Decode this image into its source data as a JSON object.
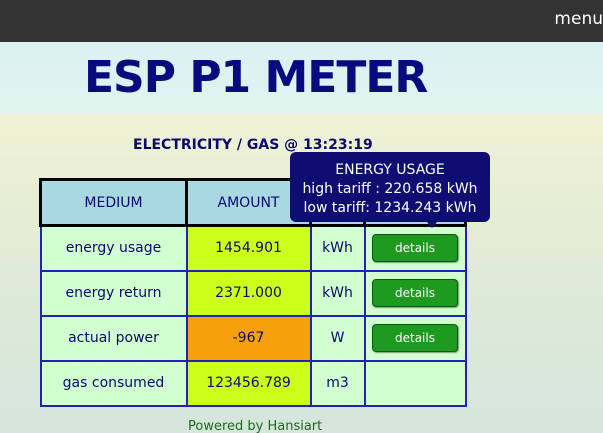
{
  "nav": {
    "menu_label": "menu"
  },
  "header": {
    "title": "ESP P1 METER"
  },
  "subtitle": "ELECTRICITY / GAS @  13:23:19",
  "table": {
    "headers": [
      "MEDIUM",
      "AMOUNT",
      "",
      ""
    ],
    "rows": [
      {
        "medium": "energy usage",
        "amount": "1454.901",
        "unit": "kWh",
        "action": "details",
        "amount_color": "#ccff1a"
      },
      {
        "medium": "energy return",
        "amount": "2371.000",
        "unit": "kWh",
        "action": "details",
        "amount_color": "#ccff1a"
      },
      {
        "medium": "actual power",
        "amount": "-967",
        "unit": "W",
        "action": "details",
        "amount_color": "#f7a00c"
      },
      {
        "medium": "gas consumed",
        "amount": "123456.789",
        "unit": "m3",
        "action": "",
        "amount_color": "#ccff1a"
      }
    ]
  },
  "tooltip": {
    "title": "ENERGY USAGE",
    "line1": "high tariff : 220.658 kWh",
    "line2": "low tariff: 1234.243 kWh"
  },
  "footer": {
    "text": "Powered by Hansiart"
  },
  "colors": {
    "topbar": "#333333",
    "title": "#0a0a7e",
    "header_cell": "#a8d8e2",
    "row_bg": "#d2ffcf",
    "button": "#1f9a21",
    "tooltip_bg": "#0e0e72"
  }
}
